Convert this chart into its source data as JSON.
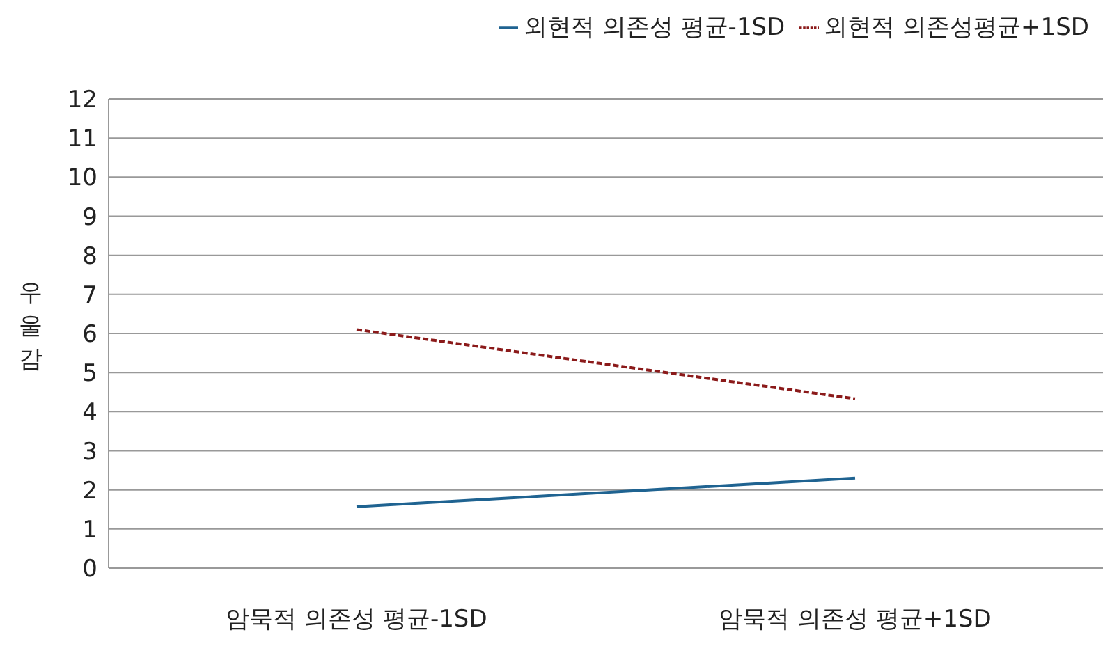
{
  "chart_data": {
    "type": "line",
    "ylabel": "우울감",
    "categories": [
      "암묵적 의존성 평균-1SD",
      "암묵적 의존성 평균+1SD"
    ],
    "series": [
      {
        "name": "외현적 의존성 평균-1SD",
        "color": "#1f6391",
        "values": [
          1.57,
          2.3
        ],
        "line_style": "solid"
      },
      {
        "name": "외현적 의존성평균+1SD",
        "color": "#8b1a1a",
        "values": [
          6.1,
          4.33
        ],
        "line_style": "dashed"
      }
    ],
    "ylim": [
      0,
      12
    ],
    "yticks": [
      0,
      1,
      2,
      3,
      4,
      5,
      6,
      7,
      8,
      9,
      10,
      11,
      12
    ],
    "grid": true,
    "legend": "top right",
    "marker": "none"
  }
}
